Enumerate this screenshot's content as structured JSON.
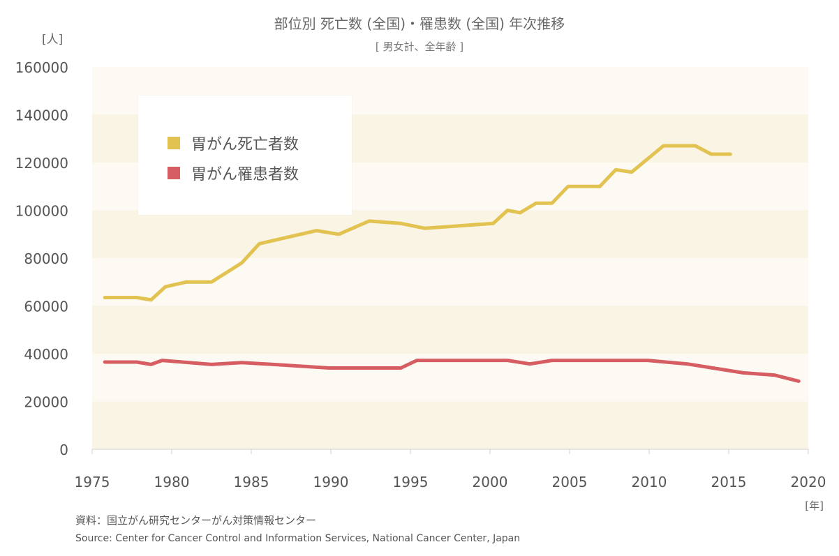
{
  "chart_data": {
    "type": "line",
    "title": "部位別 死亡数 (全国)・罹患数 (全国) 年次推移",
    "subtitle": "[ 男女計、全年齢 ]",
    "ylabel": "[人]",
    "xlabel": "[年]",
    "xlim": [
      1975,
      2020
    ],
    "ylim": [
      0,
      160000
    ],
    "xticks": [
      1975,
      1980,
      1985,
      1990,
      1995,
      2000,
      2005,
      2010,
      2015,
      2020
    ],
    "yticks": [
      0,
      20000,
      40000,
      60000,
      80000,
      100000,
      120000,
      140000,
      160000
    ],
    "colors": {
      "death": "#E2C351",
      "incidence": "#D65E63",
      "band_light": "#FDFAF3",
      "band_dark": "#FAF4E4"
    },
    "series": [
      {
        "name": "胃がん死亡者数",
        "color": "#E2C351",
        "x": [
          1975.8,
          1977.8,
          1978.7,
          1979.6,
          1980.9,
          1982.5,
          1984.4,
          1985.5,
          1989.1,
          1990.5,
          1992.4,
          1994.4,
          1995.9,
          2000.2,
          2001.1,
          2001.9,
          2002.9,
          2003.9,
          2004.9,
          2006.9,
          2007.9,
          2008.9,
          2010.9,
          2012.9,
          2013.9,
          2015.1
        ],
        "values": [
          63500,
          63500,
          62500,
          68000,
          70000,
          70000,
          78000,
          86000,
          91500,
          90000,
          95500,
          94500,
          92500,
          94500,
          100000,
          99000,
          103000,
          103000,
          110000,
          110000,
          117000,
          116000,
          127000,
          127000,
          123500,
          123500
        ]
      },
      {
        "name": "胃がん罹患者数",
        "color": "#D65E63",
        "x": [
          1975.8,
          1977.8,
          1978.7,
          1979.4,
          1982.5,
          1984.4,
          1986.9,
          1989.9,
          1994.4,
          1995.4,
          2001.1,
          2002.5,
          2003.9,
          2009.9,
          2012.4,
          2015.9,
          2017.9,
          2019.4
        ],
        "values": [
          36500,
          36500,
          35500,
          37200,
          35500,
          36300,
          35300,
          34000,
          34000,
          37200,
          37200,
          35700,
          37200,
          37200,
          35700,
          32000,
          31000,
          28500
        ]
      }
    ]
  },
  "credits": {
    "jp": "資料：国立がん研究センターがん対策情報センター",
    "en": "Source: Center for Cancer Control and Information Services, National Cancer Center, Japan"
  }
}
